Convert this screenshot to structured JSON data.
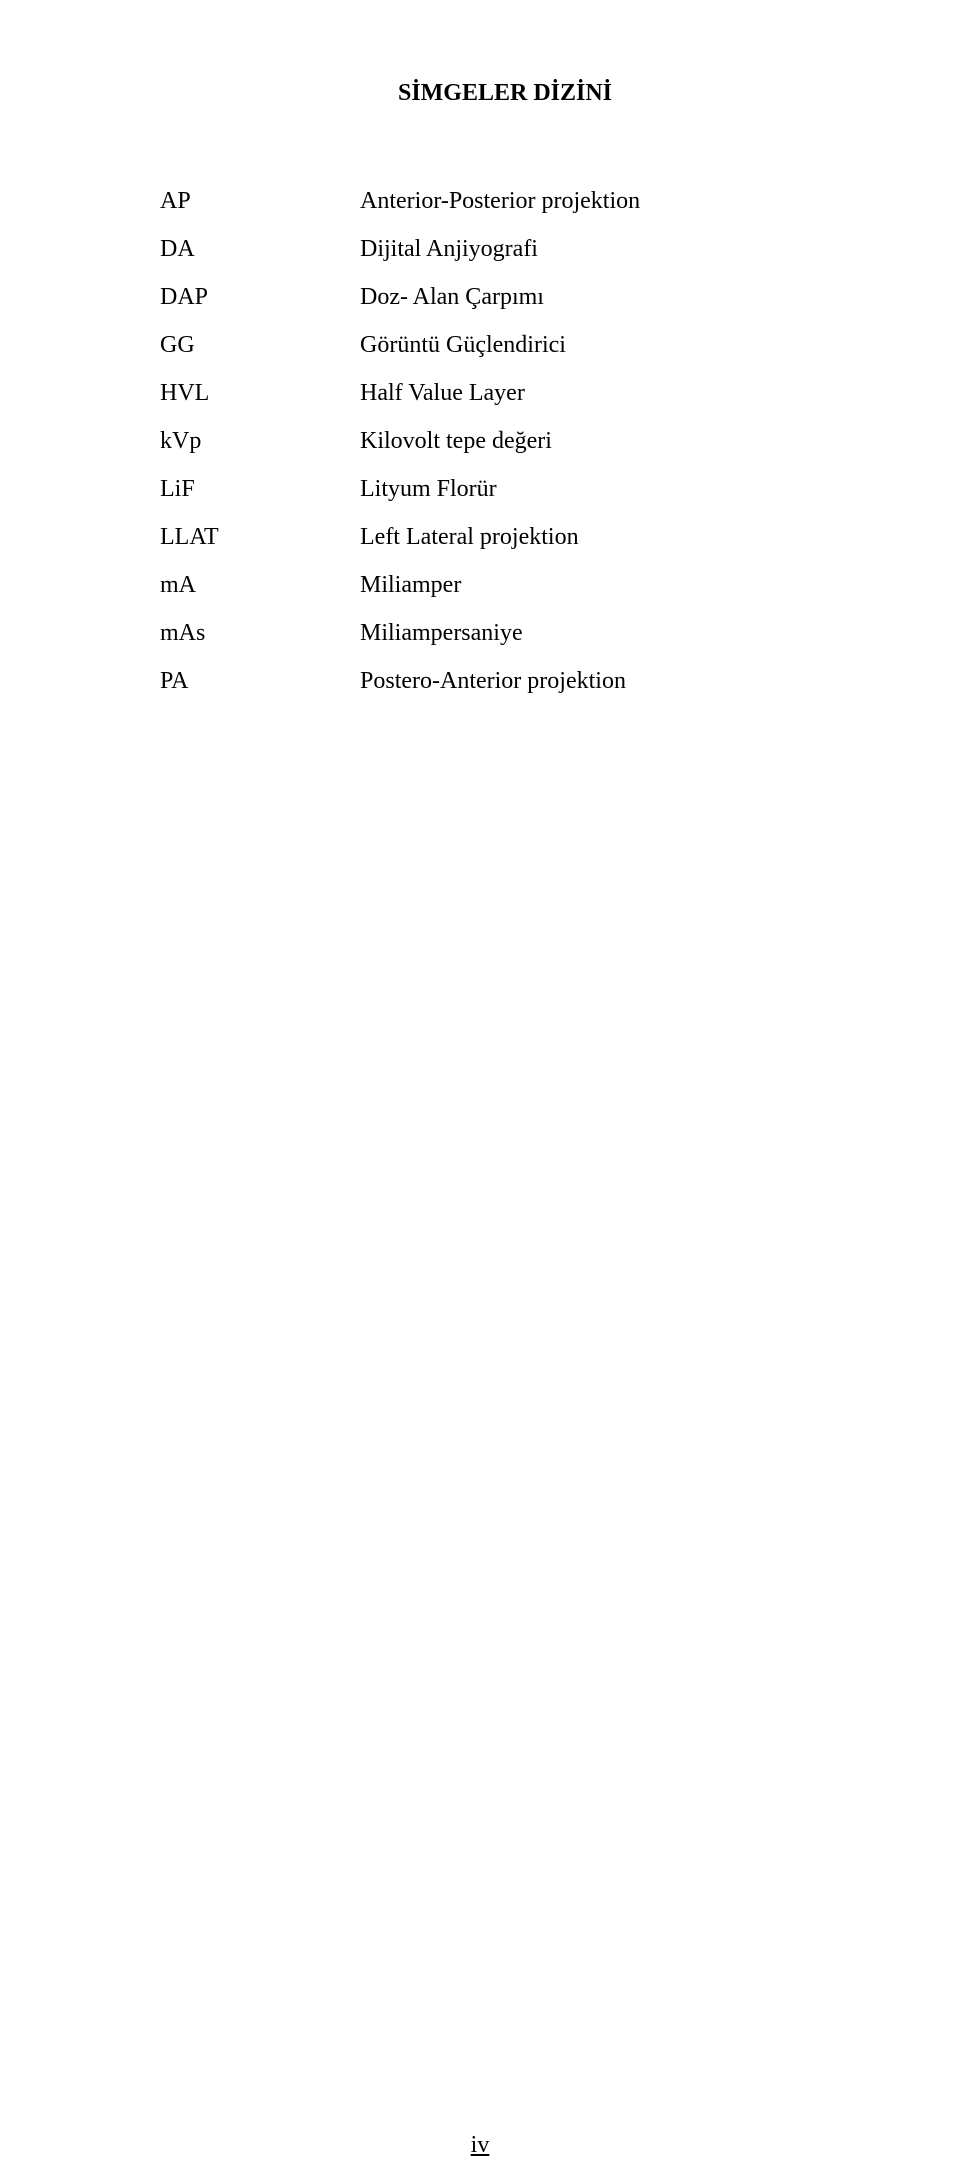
{
  "title": "SİMGELER DİZİNİ",
  "entries": [
    {
      "abbr": "AP",
      "def": "Anterior-Posterior projektion"
    },
    {
      "abbr": "DA",
      "def": "Dijital Anjiyografi"
    },
    {
      "abbr": "DAP",
      "def": "Doz- Alan Çarpımı"
    },
    {
      "abbr": "GG",
      "def": "Görüntü Güçlendirici"
    },
    {
      "abbr": "HVL",
      "def": "Half Value Layer"
    },
    {
      "abbr": "kVp",
      "def": "Kilovolt tepe değeri"
    },
    {
      "abbr": "LiF",
      "def": "Lityum Florür"
    },
    {
      "abbr": "LLAT",
      "def": "Left Lateral projektion"
    },
    {
      "abbr": "mA",
      "def": "Miliamper"
    },
    {
      "abbr": "mAs",
      "def": "Miliampersaniye"
    },
    {
      "abbr": "PA",
      "def": "Postero-Anterior projektion"
    }
  ],
  "page_number": "iv"
}
